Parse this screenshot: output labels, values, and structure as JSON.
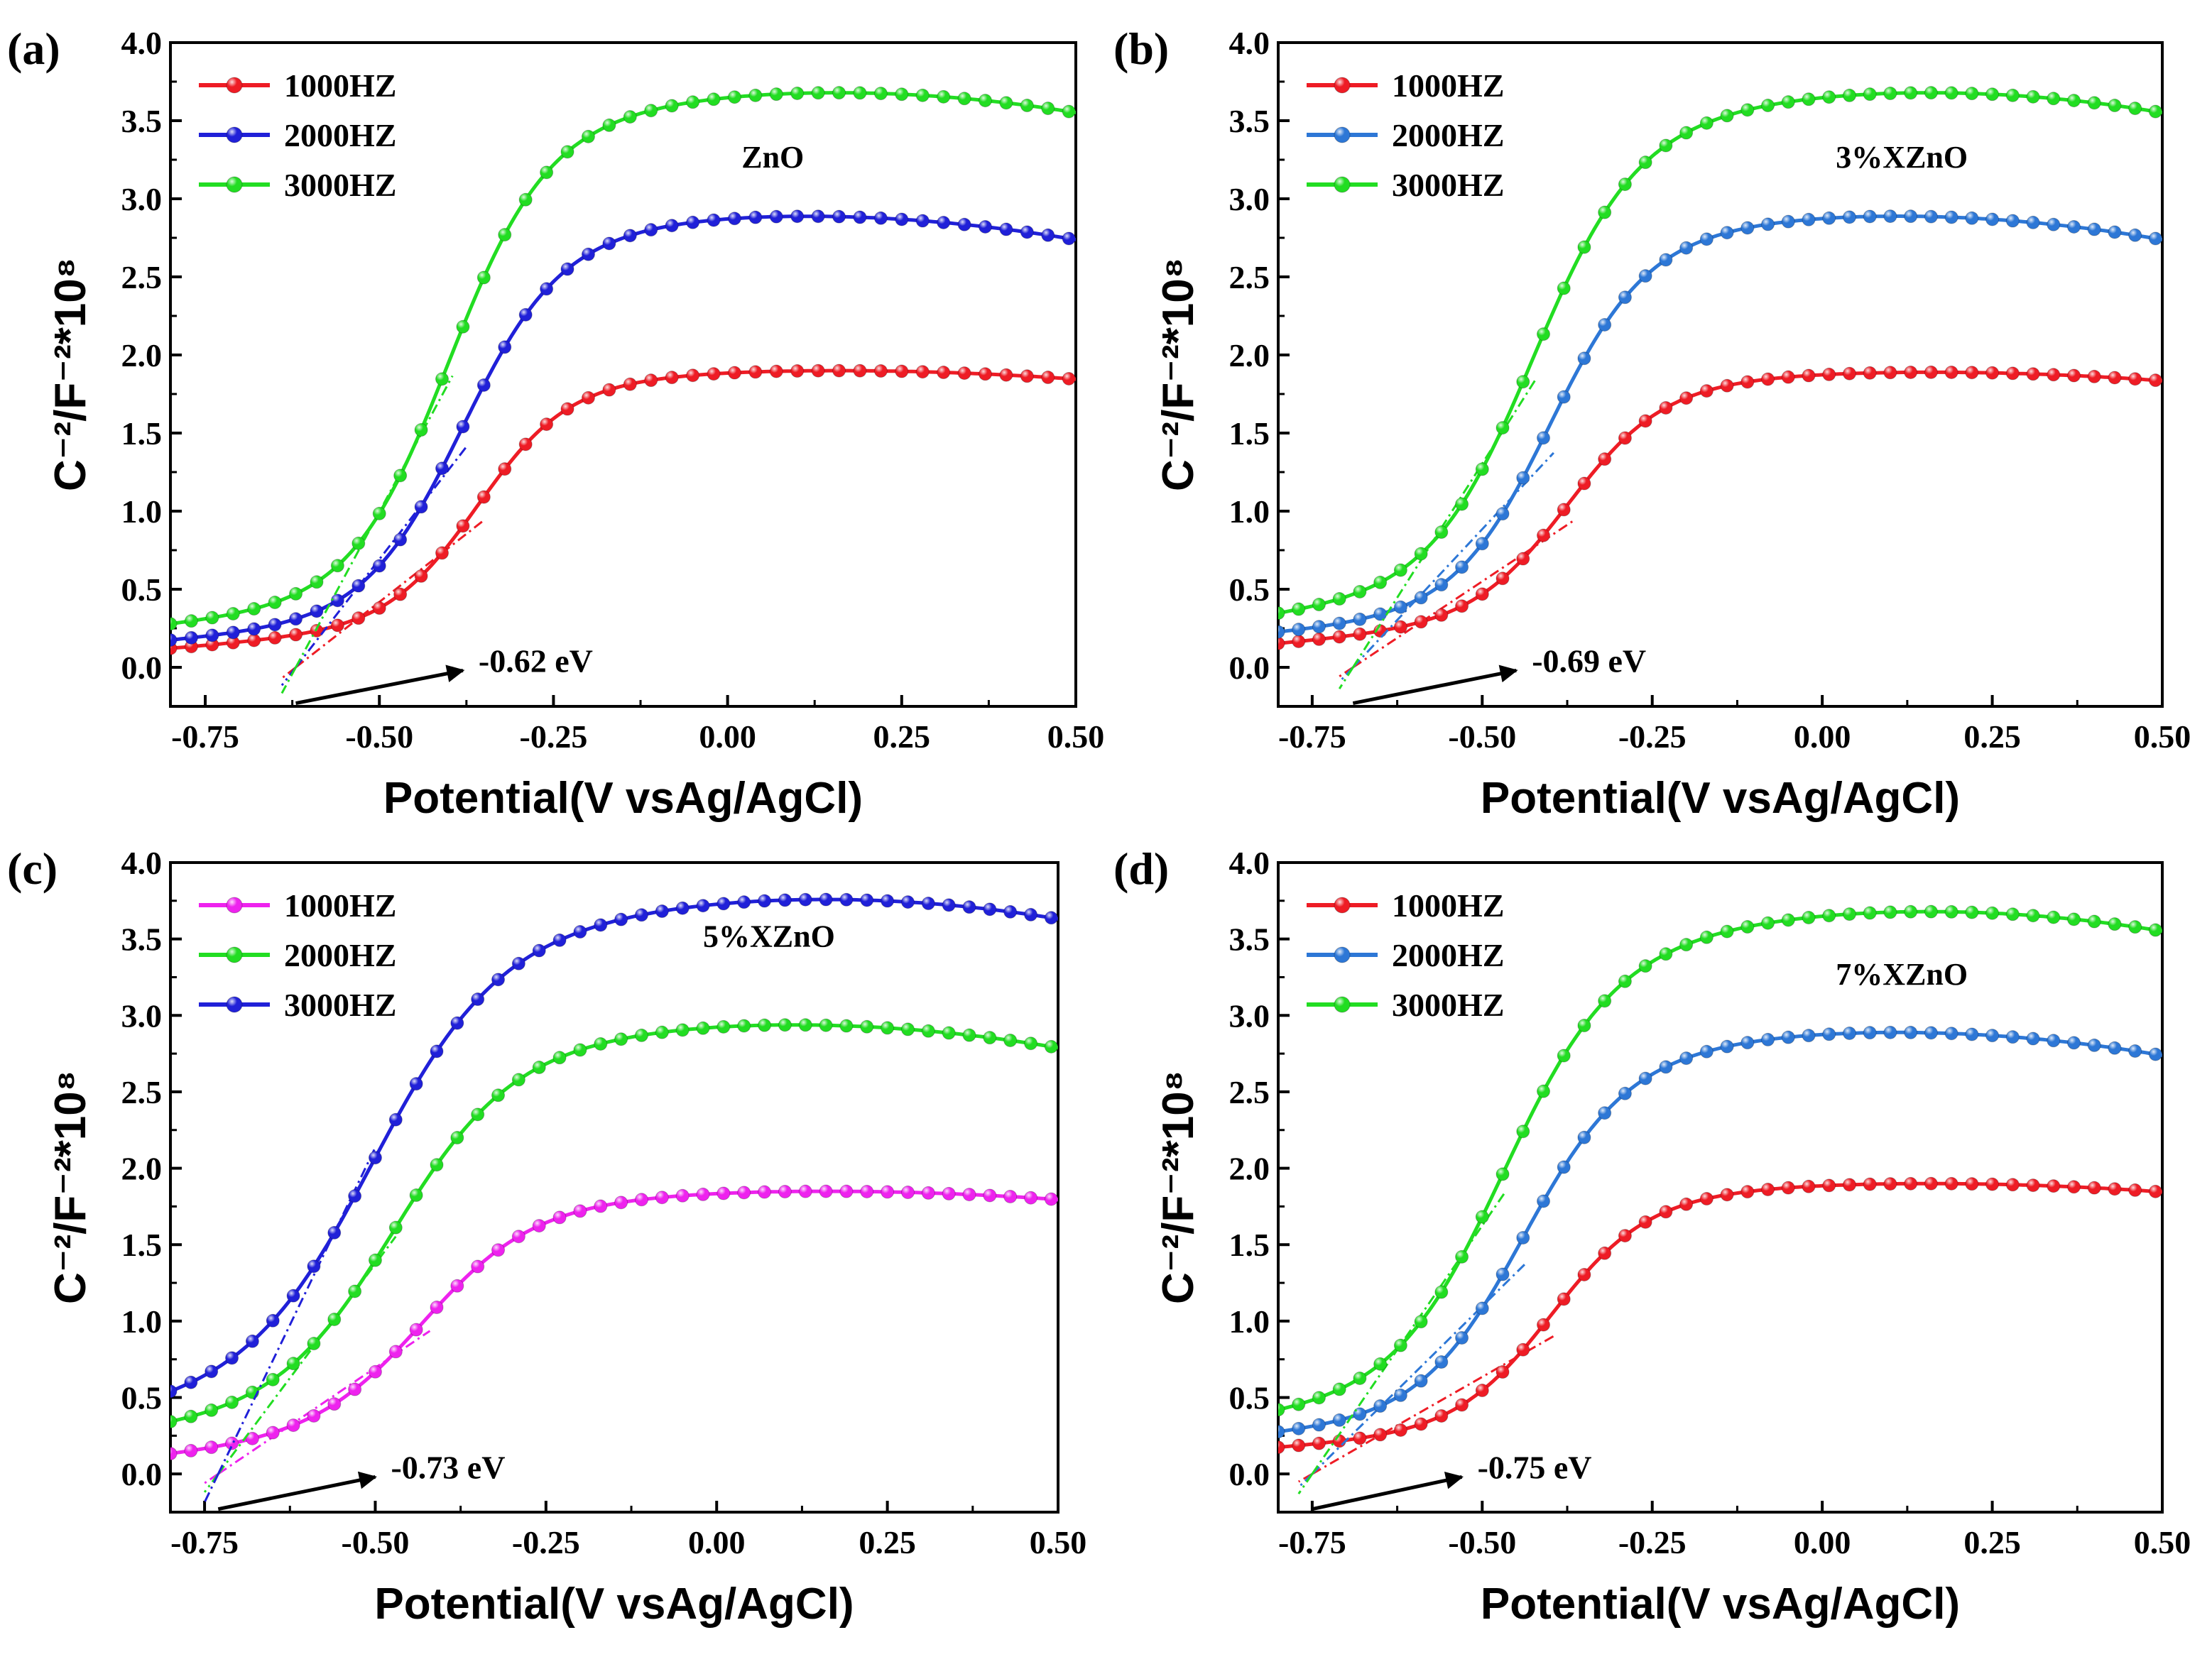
{
  "figure": {
    "type": "line",
    "panels_count": 4
  },
  "chart_data": [
    {
      "type": "line",
      "panel_label": "(a)",
      "sample_label": "ZnO",
      "xlabel": "Potential(V vsAg/AgCl)",
      "ylabel": "C⁻²/F⁻²*10⁸",
      "xlim": [
        -0.8,
        0.5
      ],
      "ylim": [
        -0.25,
        4.0
      ],
      "xticks": [
        "-0.75",
        "-0.50",
        "-0.25",
        "0.00",
        "0.25",
        "0.50"
      ],
      "yticks": [
        "0.0",
        "0.5",
        "1.0",
        "1.5",
        "2.0",
        "2.5",
        "3.0",
        "3.5",
        "4.0"
      ],
      "legend_position": "top-left",
      "annotation": {
        "text": "-0.62 eV",
        "arrow_from": [
          -0.62,
          -0.23
        ],
        "arrow_to": [
          -0.38,
          -0.02
        ]
      },
      "series": [
        {
          "name": "1000HZ",
          "color": "#ee1c25",
          "start": 0.12,
          "knee": 0.26,
          "mid": -0.36,
          "width": 0.065,
          "plateau": 1.9,
          "peak": 0.15,
          "droop": 0.45,
          "intercept": -0.62
        },
        {
          "name": "2000HZ",
          "color": "#2020d8",
          "start": 0.17,
          "knee": 0.32,
          "mid": -0.385,
          "width": 0.07,
          "plateau": 2.89,
          "peak": 0.1,
          "droop": 0.95,
          "intercept": -0.62
        },
        {
          "name": "3000HZ",
          "color": "#22dd22",
          "start": 0.27,
          "knee": 0.45,
          "mid": -0.405,
          "width": 0.07,
          "plateau": 3.68,
          "peak": 0.15,
          "droop": 1.05,
          "intercept": -0.62
        }
      ]
    },
    {
      "type": "line",
      "panel_label": "(b)",
      "sample_label": "3%XZnO",
      "xlabel": "Potential(V vsAg/AgCl)",
      "ylabel": "C⁻²/F⁻²*10⁸",
      "xlim": [
        -0.8,
        0.5
      ],
      "ylim": [
        -0.25,
        4.0
      ],
      "xticks": [
        "-0.75",
        "-0.50",
        "-0.25",
        "0.00",
        "0.25",
        "0.50"
      ],
      "yticks": [
        "0.0",
        "0.5",
        "1.0",
        "1.5",
        "2.0",
        "2.5",
        "3.0",
        "3.5",
        "4.0"
      ],
      "legend_position": "top-left",
      "annotation": {
        "text": "-0.69 eV",
        "arrow_from": [
          -0.69,
          -0.23
        ],
        "arrow_to": [
          -0.45,
          -0.02
        ]
      },
      "series": [
        {
          "name": "1000HZ",
          "color": "#ee1c25",
          "start": 0.15,
          "knee": 0.3,
          "mid": -0.375,
          "width": 0.07,
          "plateau": 1.89,
          "peak": 0.15,
          "droop": 0.45,
          "intercept": -0.69
        },
        {
          "name": "2000HZ",
          "color": "#2d77d6",
          "start": 0.22,
          "knee": 0.38,
          "mid": -0.405,
          "width": 0.07,
          "plateau": 2.89,
          "peak": 0.1,
          "droop": 0.95,
          "intercept": -0.69
        },
        {
          "name": "3000HZ",
          "color": "#22dd22",
          "start": 0.33,
          "knee": 0.55,
          "mid": -0.43,
          "width": 0.075,
          "plateau": 3.68,
          "peak": 0.15,
          "droop": 1.05,
          "intercept": -0.69
        }
      ]
    },
    {
      "type": "line",
      "panel_label": "(c)",
      "sample_label": "5%XZnO",
      "xlabel": "Potential(V vsAg/AgCl)",
      "ylabel": "C⁻²/F⁻²*10⁸",
      "xlim": [
        -0.8,
        0.5
      ],
      "ylim": [
        -0.25,
        4.0
      ],
      "xticks": [
        "-0.75",
        "-0.50",
        "-0.25",
        "0.00",
        "0.25",
        "0.50"
      ],
      "yticks": [
        "0.0",
        "0.5",
        "1.0",
        "1.5",
        "2.0",
        "2.5",
        "3.0",
        "3.5",
        "4.0"
      ],
      "legend_position": "top-left",
      "annotation": {
        "text": "-0.73 eV",
        "arrow_from": [
          -0.73,
          -0.23
        ],
        "arrow_to": [
          -0.5,
          -0.02
        ]
      },
      "series": [
        {
          "name": "1000HZ",
          "color": "#ee22ee",
          "start": 0.12,
          "knee": 0.3,
          "mid": -0.43,
          "width": 0.08,
          "plateau": 1.85,
          "peak": 0.15,
          "droop": 0.45,
          "intercept": -0.73
        },
        {
          "name": "2000HZ",
          "color": "#22dd22",
          "start": 0.3,
          "knee": 0.5,
          "mid": -0.48,
          "width": 0.085,
          "plateau": 2.94,
          "peak": 0.1,
          "droop": 0.95,
          "intercept": -0.73
        },
        {
          "name": "3000HZ",
          "color": "#2020d8",
          "start": 0.45,
          "knee": 0.75,
          "mid": -0.51,
          "width": 0.09,
          "plateau": 3.76,
          "peak": 0.15,
          "droop": 1.05,
          "intercept": -0.73
        }
      ]
    },
    {
      "type": "line",
      "panel_label": "(d)",
      "sample_label": "7%XZnO",
      "xlabel": "Potential(V vsAg/AgCl)",
      "ylabel": "C⁻²/F⁻²*10⁸",
      "xlim": [
        -0.8,
        0.5
      ],
      "ylim": [
        -0.25,
        4.0
      ],
      "xticks": [
        "-0.75",
        "-0.50",
        "-0.25",
        "0.00",
        "0.25",
        "0.50"
      ],
      "yticks": [
        "0.0",
        "0.5",
        "1.0",
        "1.5",
        "2.0",
        "2.5",
        "3.0",
        "3.5",
        "4.0"
      ],
      "legend_position": "top-left",
      "annotation": {
        "text": "-0.75 eV",
        "arrow_from": [
          -0.75,
          -0.23
        ],
        "arrow_to": [
          -0.53,
          -0.02
        ]
      },
      "series": [
        {
          "name": "1000HZ",
          "color": "#ee1c25",
          "start": 0.17,
          "knee": 0.3,
          "mid": -0.4,
          "width": 0.07,
          "plateau": 1.9,
          "peak": 0.15,
          "droop": 0.45,
          "intercept": -0.75
        },
        {
          "name": "2000HZ",
          "color": "#2d77d6",
          "start": 0.26,
          "knee": 0.42,
          "mid": -0.445,
          "width": 0.075,
          "plateau": 2.89,
          "peak": 0.1,
          "droop": 0.95,
          "intercept": -0.75
        },
        {
          "name": "3000HZ",
          "color": "#22dd22",
          "start": 0.38,
          "knee": 0.6,
          "mid": -0.475,
          "width": 0.08,
          "plateau": 3.68,
          "peak": 0.15,
          "droop": 1.05,
          "intercept": -0.75
        }
      ]
    }
  ]
}
